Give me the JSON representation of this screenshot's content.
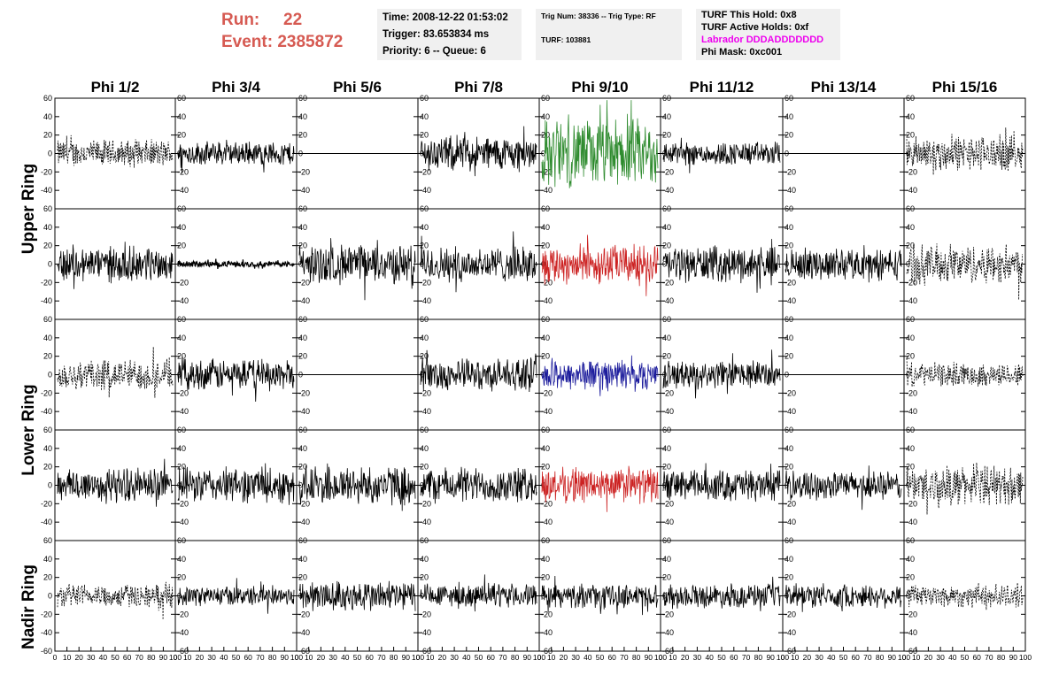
{
  "header": {
    "run_label": "Run:",
    "run_value": "22",
    "event_label": "Event:",
    "event_value": "2385872"
  },
  "info_time": {
    "time": "Time: 2008-12-22 01:53:02",
    "trigger": "Trigger: 83.653834 ms",
    "priority": "Priority: 6 -- Queue: 6"
  },
  "info_trig": {
    "trig": "Trig Num: 38336 -- Trig Type: RF",
    "turf": "TURF: 103881"
  },
  "info_turf": {
    "this_hold": "TURF This Hold: 0x8",
    "active_holds": "TURF Active Holds: 0xf",
    "labrador": "Labrador DDDADDDDDDD",
    "phi_mask": "Phi Mask: 0xc001"
  },
  "colors": {
    "labrador": "#ee00ee",
    "run": "#d65a52",
    "green": "#2e8b2e",
    "red": "#cc2222",
    "blue": "#1c1c9c",
    "black": "#000000"
  },
  "chart_data": {
    "type": "line",
    "columns": [
      "Phi 1/2",
      "Phi 3/4",
      "Phi 5/6",
      "Phi 7/8",
      "Phi 9/10",
      "Phi 11/12",
      "Phi 13/14",
      "Phi 15/16"
    ],
    "rows": [
      "Upper Ring",
      "Lower Ring",
      "Nadir Ring"
    ],
    "y_ticks": [
      "60",
      "40",
      "20",
      "0",
      "-20",
      "-40"
    ],
    "y_ticks_nadir": [
      "60",
      "40",
      "20",
      "0",
      "-20",
      "-40",
      "-60"
    ],
    "x_ticks": [
      "0",
      "10",
      "20",
      "30",
      "40",
      "50",
      "60",
      "70",
      "80",
      "90",
      "100"
    ],
    "xlim": [
      0,
      100
    ],
    "ylim": [
      -60,
      60
    ],
    "traces": [
      [
        "dash",
        "solid",
        "flat",
        "solid",
        "green",
        "solid",
        "flat",
        "dash"
      ],
      [
        "solid",
        "small",
        "solid",
        "solid",
        "red",
        "solid",
        "solid",
        "dash"
      ],
      [
        "dash",
        "solid",
        "flat",
        "solid",
        "blue",
        "solid",
        "flat",
        "dash"
      ],
      [
        "solid",
        "solid",
        "solid",
        "solid",
        "red",
        "solid",
        "solid",
        "dash"
      ],
      [
        "dash",
        "solid",
        "solid",
        "solid",
        "solid",
        "solid",
        "solid",
        "dash"
      ]
    ],
    "amplitudes": [
      [
        14,
        12,
        0,
        18,
        35,
        12,
        0,
        18
      ],
      [
        18,
        3,
        20,
        18,
        20,
        18,
        16,
        20
      ],
      [
        16,
        16,
        0,
        16,
        16,
        14,
        0,
        12
      ],
      [
        18,
        18,
        20,
        18,
        18,
        16,
        14,
        20
      ],
      [
        12,
        10,
        16,
        12,
        12,
        12,
        12,
        12
      ]
    ]
  }
}
